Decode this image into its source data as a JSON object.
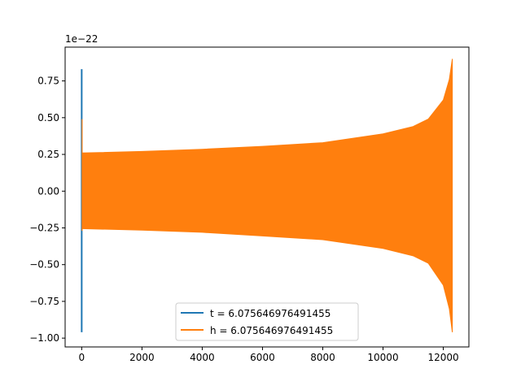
{
  "chart_data": {
    "type": "line",
    "title": "",
    "xlabel": "",
    "ylabel": "",
    "y_scale_label": "1e−22",
    "xlim": [
      -550,
      12850
    ],
    "ylim": [
      -1.06,
      0.98
    ],
    "xticks": [
      0,
      2000,
      4000,
      6000,
      8000,
      10000,
      12000
    ],
    "xtick_labels": [
      "0",
      "2000",
      "4000",
      "6000",
      "8000",
      "10000",
      "12000"
    ],
    "yticks": [
      -1.0,
      -0.75,
      -0.5,
      -0.25,
      0.0,
      0.25,
      0.5,
      0.75
    ],
    "ytick_labels": [
      "−1.00",
      "−0.75",
      "−0.50",
      "−0.25",
      "0.00",
      "0.25",
      "0.50",
      "0.75"
    ],
    "grid": false,
    "legend_placement": "lower-center",
    "series": [
      {
        "name": "t = 6.075646976491455",
        "color": "#1f77b4",
        "description_points": {
          "x": [
            0,
            0
          ],
          "y": [
            -0.96,
            0.83
          ]
        }
      },
      {
        "name": "h = 6.075646976491455",
        "color": "#ff7f0e",
        "envelope": {
          "x": [
            0,
            2000,
            4000,
            6000,
            8000,
            10000,
            11000,
            11500,
            12000,
            12200,
            12300
          ],
          "upper": [
            0.26,
            0.27,
            0.285,
            0.305,
            0.33,
            0.39,
            0.44,
            0.49,
            0.62,
            0.76,
            0.9
          ],
          "lower": [
            -0.255,
            -0.265,
            -0.28,
            -0.305,
            -0.33,
            -0.39,
            -0.44,
            -0.49,
            -0.64,
            -0.8,
            -0.96
          ]
        }
      }
    ]
  }
}
